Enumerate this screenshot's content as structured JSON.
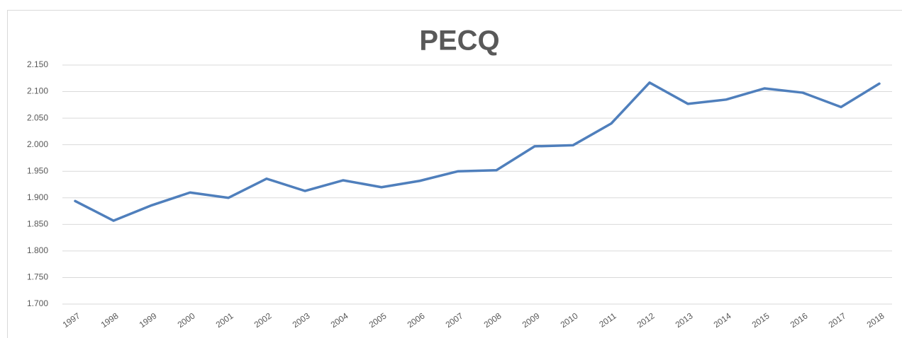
{
  "chart_data": {
    "type": "line",
    "title": "PECQ",
    "categories": [
      "1997",
      "1998",
      "1999",
      "2000",
      "2001",
      "2002",
      "2003",
      "2004",
      "2005",
      "2006",
      "2007",
      "2008",
      "2009",
      "2010",
      "2011",
      "2012",
      "2013",
      "2014",
      "2015",
      "2016",
      "2017",
      "2018"
    ],
    "series": [
      {
        "name": "PECQ",
        "color": "#4f7fbc",
        "values": [
          1894,
          1857,
          1886,
          1910,
          1900,
          1936,
          1913,
          1933,
          1920,
          1932,
          1950,
          1952,
          1997,
          1999,
          2040,
          2117,
          2077,
          2085,
          2106,
          2098,
          2071,
          2115
        ]
      }
    ],
    "ylim": [
      1700,
      2150
    ],
    "yticks": [
      {
        "value": 1700,
        "label": "1.700"
      },
      {
        "value": 1750,
        "label": "1.750"
      },
      {
        "value": 1800,
        "label": "1.800"
      },
      {
        "value": 1850,
        "label": "1.850"
      },
      {
        "value": 1900,
        "label": "1.900"
      },
      {
        "value": 1950,
        "label": "1.950"
      },
      {
        "value": 2000,
        "label": "2.000"
      },
      {
        "value": 2050,
        "label": "2.050"
      },
      {
        "value": 2100,
        "label": "2.100"
      },
      {
        "value": 2150,
        "label": "2.150"
      }
    ],
    "grid": true
  }
}
